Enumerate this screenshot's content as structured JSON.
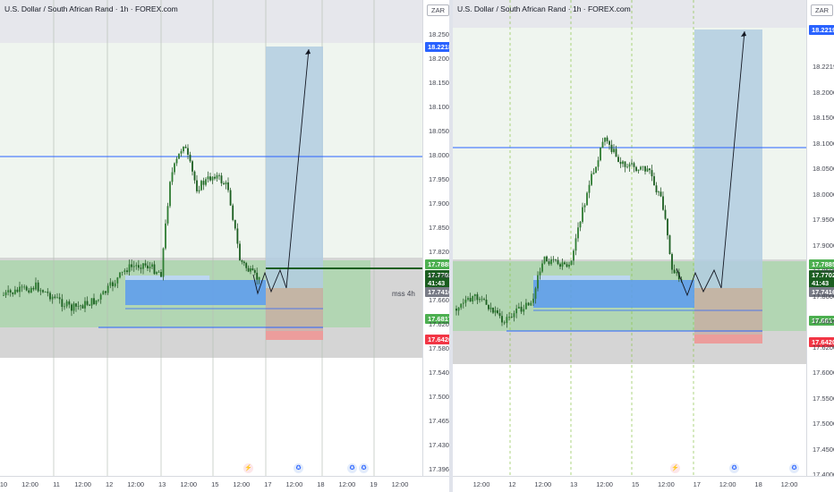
{
  "left": {
    "title": "U.S. Dollar / South African Rand · 1h · FOREX.com",
    "currency": "ZAR",
    "y_ticks": [
      "18.2500",
      "18.2000",
      "18.1500",
      "18.1000",
      "18.0500",
      "18.0000",
      "17.9500",
      "17.9000",
      "17.8500",
      "17.8200",
      "17.7000",
      "17.6600",
      "17.6200",
      "17.5800",
      "17.5400",
      "17.5000",
      "17.4650",
      "17.4300",
      "17.3960"
    ],
    "x_ticks": [
      "10",
      "12:00",
      "11",
      "12:00",
      "12",
      "12:00",
      "13",
      "12:00",
      "15",
      "12:00",
      "17",
      "12:00",
      "18",
      "12:00",
      "19",
      "12:00"
    ],
    "labels": {
      "top": "18.2218",
      "green": "17.7885",
      "price": "17.7702",
      "countdown": "41:43",
      "grey": "17.7416",
      "green2": "17.6817",
      "red": "17.6420"
    },
    "annotation": "mss 4h"
  },
  "right": {
    "title": "U.S. Dollar / South African Rand · 1h · FOREX.com",
    "currency": "ZAR",
    "y_ticks": [
      "18.2219",
      "18.2000",
      "18.1500",
      "18.1000",
      "18.0500",
      "18.0000",
      "17.9500",
      "17.9000",
      "17.8500",
      "17.8000",
      "17.6600",
      "17.6200",
      "17.6000",
      "17.5500",
      "17.5000",
      "17.4500",
      "17.4000"
    ],
    "x_ticks": [
      "12:00",
      "12",
      "12:00",
      "13",
      "12:00",
      "15",
      "12:00",
      "17",
      "12:00",
      "18",
      "12:00"
    ],
    "labels": {
      "top": "18.2219",
      "green": "17.7885",
      "price": "17.7702",
      "countdown": "41:43",
      "grey": "17.7416",
      "green2": "17.6817",
      "red": "17.6420"
    }
  },
  "colors": {
    "bull": "#089981",
    "bear": "#f23645",
    "candle": "#1b5e20",
    "blue_line": "#2962ff",
    "target_zone": "#b2cde0",
    "green_zone": "#a5d6a7",
    "grey_zone": "#c7c7c7",
    "label_blue": "#2962ff",
    "label_green": "#4caf50",
    "label_red": "#f23645",
    "label_grey": "#787b86"
  },
  "icons": [
    "lightning-icon",
    "us-flag-icon"
  ]
}
